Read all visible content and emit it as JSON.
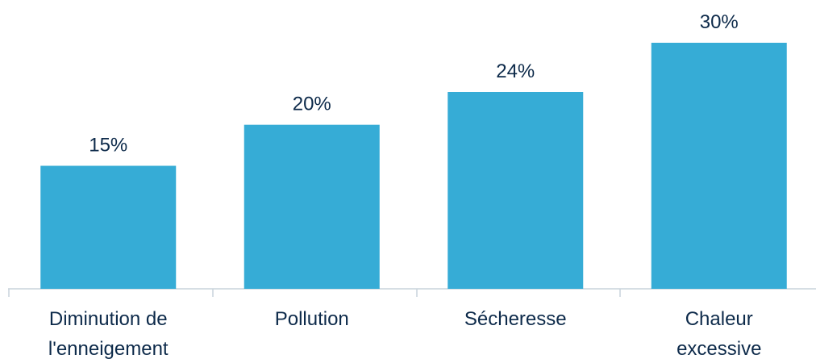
{
  "chart_data": {
    "type": "bar",
    "categories": [
      "Diminution de l'enneigement",
      "Pollution",
      "Sécheresse",
      "Chaleur excessive"
    ],
    "values": [
      15,
      20,
      24,
      30
    ],
    "value_labels": [
      "15%",
      "20%",
      "24%",
      "30%"
    ],
    "color": "#36acd6",
    "ylim": [
      0,
      30
    ]
  }
}
